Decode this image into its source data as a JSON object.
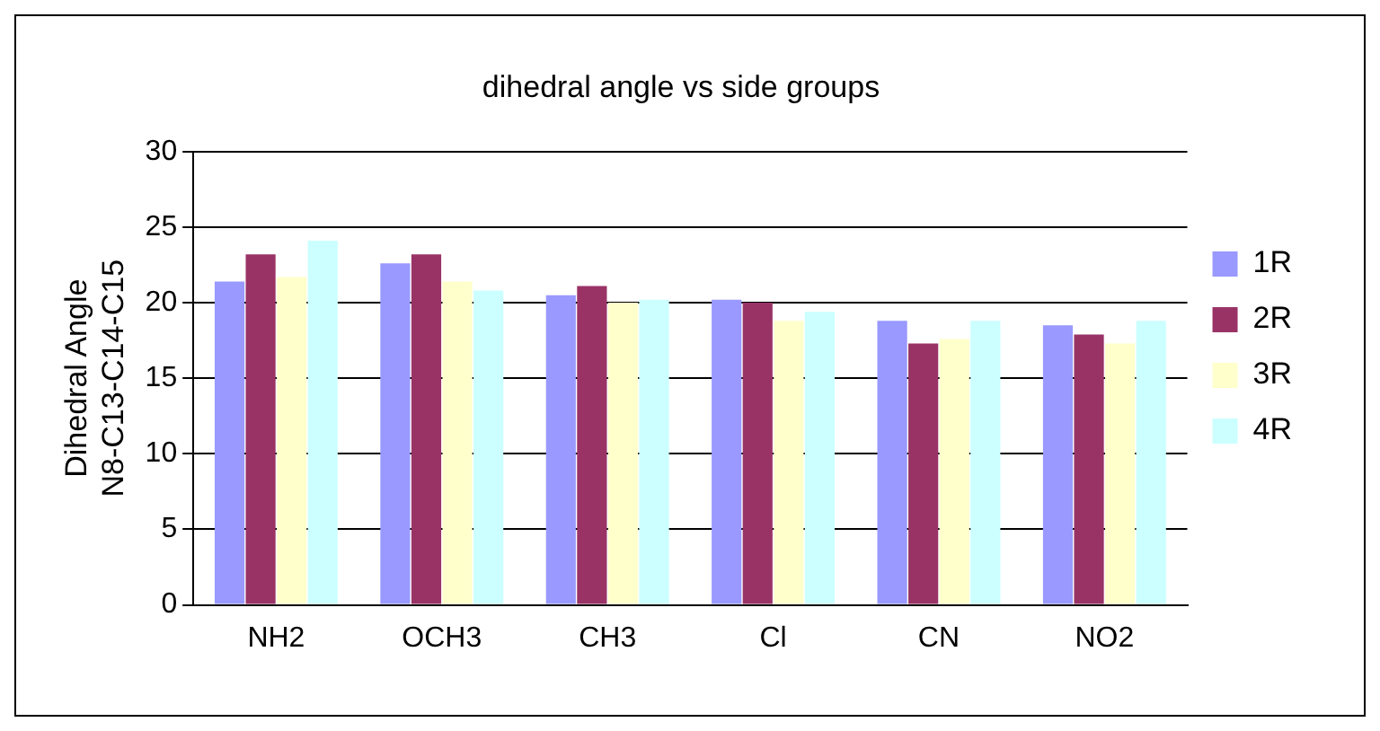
{
  "chart_data": {
    "type": "bar",
    "title": "dihedral angle vs side groups",
    "ylabel": "Dihedral Angle\nN8-C13-C14-C15",
    "categories": [
      "NH2",
      "OCH3",
      "CH3",
      "Cl",
      "CN",
      "NO2"
    ],
    "series": [
      {
        "name": "1R",
        "color": "#9999ff",
        "values": [
          21.4,
          22.6,
          20.5,
          20.2,
          18.8,
          18.5
        ]
      },
      {
        "name": "2R",
        "color": "#993366",
        "values": [
          23.2,
          23.2,
          21.1,
          20.0,
          17.3,
          17.9
        ]
      },
      {
        "name": "3R",
        "color": "#ffffcc",
        "values": [
          21.7,
          21.4,
          20.0,
          18.8,
          17.6,
          17.3
        ]
      },
      {
        "name": "4R",
        "color": "#ccffff",
        "values": [
          24.1,
          20.8,
          20.2,
          19.4,
          18.8,
          18.8
        ]
      }
    ],
    "ylim": [
      0,
      30
    ],
    "yticks": [
      0,
      5,
      10,
      15,
      20,
      25,
      30
    ],
    "grid": "y",
    "legend": "right"
  }
}
